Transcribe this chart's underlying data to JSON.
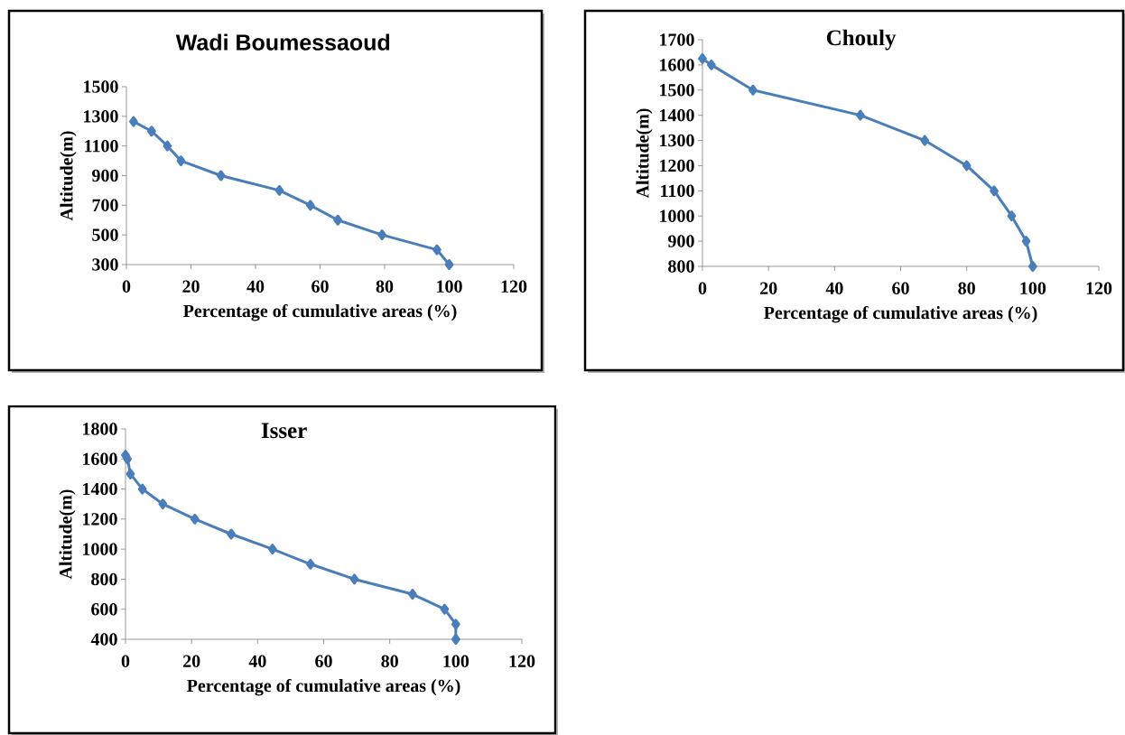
{
  "chart_data": [
    {
      "type": "line",
      "title": "Wadi Boumessaoud",
      "xlabel": "Percentage of cumulative areas (%)",
      "ylabel": "Altitude(m)",
      "xlim": [
        0,
        120
      ],
      "xticks": [
        0,
        20,
        40,
        60,
        80,
        100,
        120
      ],
      "ylim": [
        300,
        1500
      ],
      "yticks": [
        300,
        500,
        700,
        900,
        1100,
        1300,
        1500
      ],
      "grid": false,
      "marker": "diamond",
      "line_style": "solid",
      "series": [
        {
          "color": "#4a7ebb",
          "x": [
            2.2,
            7.8,
            12.7,
            16.9,
            29.3,
            47.4,
            57.0,
            65.5,
            79.2,
            96.2,
            100
          ],
          "values": [
            1265,
            1200,
            1100,
            1000,
            900,
            800,
            700,
            600,
            500,
            400,
            300
          ]
        }
      ]
    },
    {
      "type": "line",
      "title": "Chouly",
      "xlabel": "Percentage of cumulative areas (%)",
      "ylabel": "Altitude(m)",
      "xlim": [
        0,
        120
      ],
      "xticks": [
        0,
        20,
        40,
        60,
        80,
        100,
        120
      ],
      "ylim": [
        800,
        1700
      ],
      "yticks": [
        800,
        900,
        1000,
        1100,
        1200,
        1300,
        1400,
        1500,
        1600,
        1700
      ],
      "grid": false,
      "marker": "diamond",
      "line_style": "solid",
      "series": [
        {
          "color": "#4a7ebb",
          "x": [
            0,
            2.7,
            15.3,
            47.8,
            67.3,
            80.0,
            88.3,
            93.6,
            98.0,
            100
          ],
          "values": [
            1625,
            1600,
            1500,
            1400,
            1300,
            1200,
            1100,
            1000,
            900,
            800
          ]
        }
      ]
    },
    {
      "type": "line",
      "title": "Isser",
      "xlabel": "Percentage of cumulative areas (%)",
      "ylabel": "Altitude(m)",
      "xlim": [
        0,
        120
      ],
      "xticks": [
        0,
        20,
        40,
        60,
        80,
        100,
        120
      ],
      "ylim": [
        400,
        1800
      ],
      "yticks": [
        400,
        600,
        800,
        1000,
        1200,
        1400,
        1600,
        1800
      ],
      "grid": false,
      "marker": "diamond",
      "line_style": "solid",
      "series": [
        {
          "color": "#4a7ebb",
          "x": [
            0,
            0.6,
            1.5,
            5.1,
            11.3,
            21.0,
            32.0,
            44.5,
            56.0,
            69.3,
            86.9,
            96.6,
            100,
            100
          ],
          "values": [
            1625,
            1600,
            1500,
            1400,
            1300,
            1200,
            1100,
            1000,
            900,
            800,
            700,
            600,
            500,
            400
          ]
        }
      ]
    }
  ]
}
